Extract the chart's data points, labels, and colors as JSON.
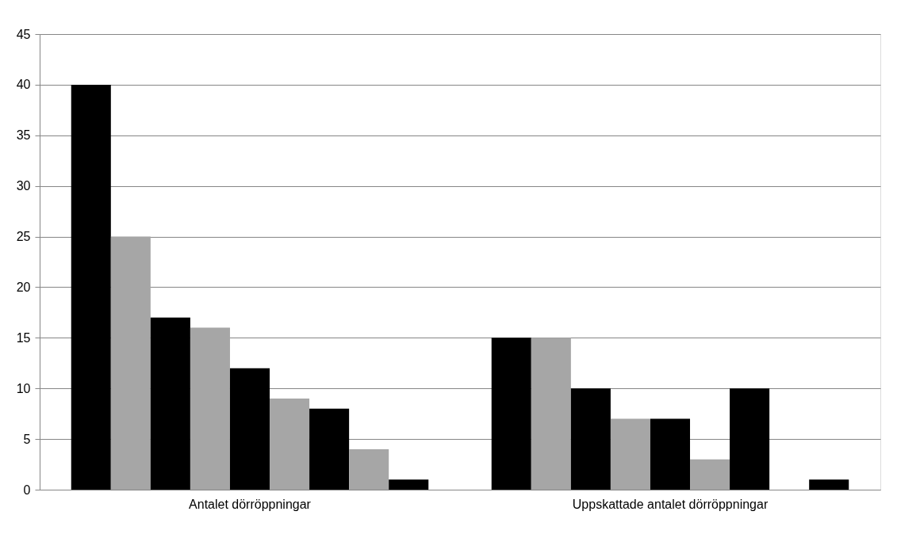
{
  "chart_data": {
    "type": "bar",
    "categories": [
      "Antalet dörröppningar",
      "Uppskattade antalet dörröppningar"
    ],
    "series": [
      {
        "color": "#000000",
        "values": [
          40,
          15
        ]
      },
      {
        "color": "#a6a6a6",
        "values": [
          25,
          15
        ]
      },
      {
        "color": "#000000",
        "values": [
          17,
          10
        ]
      },
      {
        "color": "#a6a6a6",
        "values": [
          16,
          7
        ]
      },
      {
        "color": "#000000",
        "values": [
          12,
          7
        ]
      },
      {
        "color": "#a6a6a6",
        "values": [
          9,
          3
        ]
      },
      {
        "color": "#000000",
        "values": [
          8,
          10
        ]
      },
      {
        "color": "#a6a6a6",
        "values": [
          4,
          0
        ]
      },
      {
        "color": "#000000",
        "values": [
          1,
          1
        ]
      }
    ],
    "ylim": [
      0,
      45
    ],
    "yticks": [
      0,
      5,
      10,
      15,
      20,
      25,
      30,
      35,
      40,
      45
    ],
    "grid": "y",
    "legend": false
  }
}
